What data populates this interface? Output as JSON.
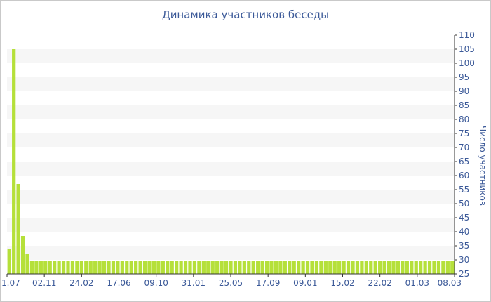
{
  "chart_data": {
    "type": "bar",
    "title": "Динамика участников беседы",
    "ylabel": "Число участников",
    "ylim": [
      25,
      110
    ],
    "y_ticks": [
      25,
      30,
      35,
      40,
      45,
      50,
      55,
      60,
      65,
      70,
      75,
      80,
      85,
      90,
      95,
      100,
      105,
      110
    ],
    "x_tick_labels": [
      "1.07",
      "02.11",
      "24.02",
      "17.06",
      "09.10",
      "31.01",
      "25.05",
      "17.09",
      "09.01",
      "15.02",
      "22.02",
      "01.03",
      "08.03"
    ],
    "values": [
      34,
      105,
      57,
      38.5,
      32,
      29.5,
      29.5,
      29.5,
      29.5,
      29.5,
      29.5,
      29.5,
      29.5,
      29.5,
      29.5,
      29.5,
      29.5,
      29.5,
      29.5,
      29.5,
      29.5,
      29.5,
      29.5,
      29.5,
      29.5,
      29.5,
      29.5,
      29.5,
      29.5,
      29.5,
      29.5,
      29.5,
      29.5,
      29.5,
      29.5,
      29.5,
      29.5,
      29.5,
      29.5,
      29.5,
      29.5,
      29.5,
      29.5,
      29.5,
      29.5,
      29.5,
      29.5,
      29.5,
      29.5,
      29.5,
      29.5,
      29.5,
      29.5,
      29.5,
      29.5,
      29.5,
      29.5,
      29.5,
      29.5,
      29.5,
      29.5,
      29.5,
      29.5,
      29.5,
      29.5,
      29.5,
      29.5,
      29.5,
      29.5,
      29.5,
      29.5,
      29.5,
      29.5,
      29.5,
      29.5,
      29.5,
      29.5,
      29.5,
      29.5,
      29.5,
      29.5,
      29.5,
      29.5,
      29.5,
      29.5,
      29.5,
      29.5,
      29.5,
      29.5,
      29.5,
      29.5,
      29.5,
      29.5,
      29.5,
      29.5,
      29.5,
      29.5,
      29.5,
      29.5
    ],
    "grid": "alternating horizontal bands",
    "y_axis_position": "right",
    "colors": {
      "bar": "#b5e03a",
      "band": "#f6f6f6",
      "text": "#3b5998",
      "axis": "#333333"
    }
  }
}
